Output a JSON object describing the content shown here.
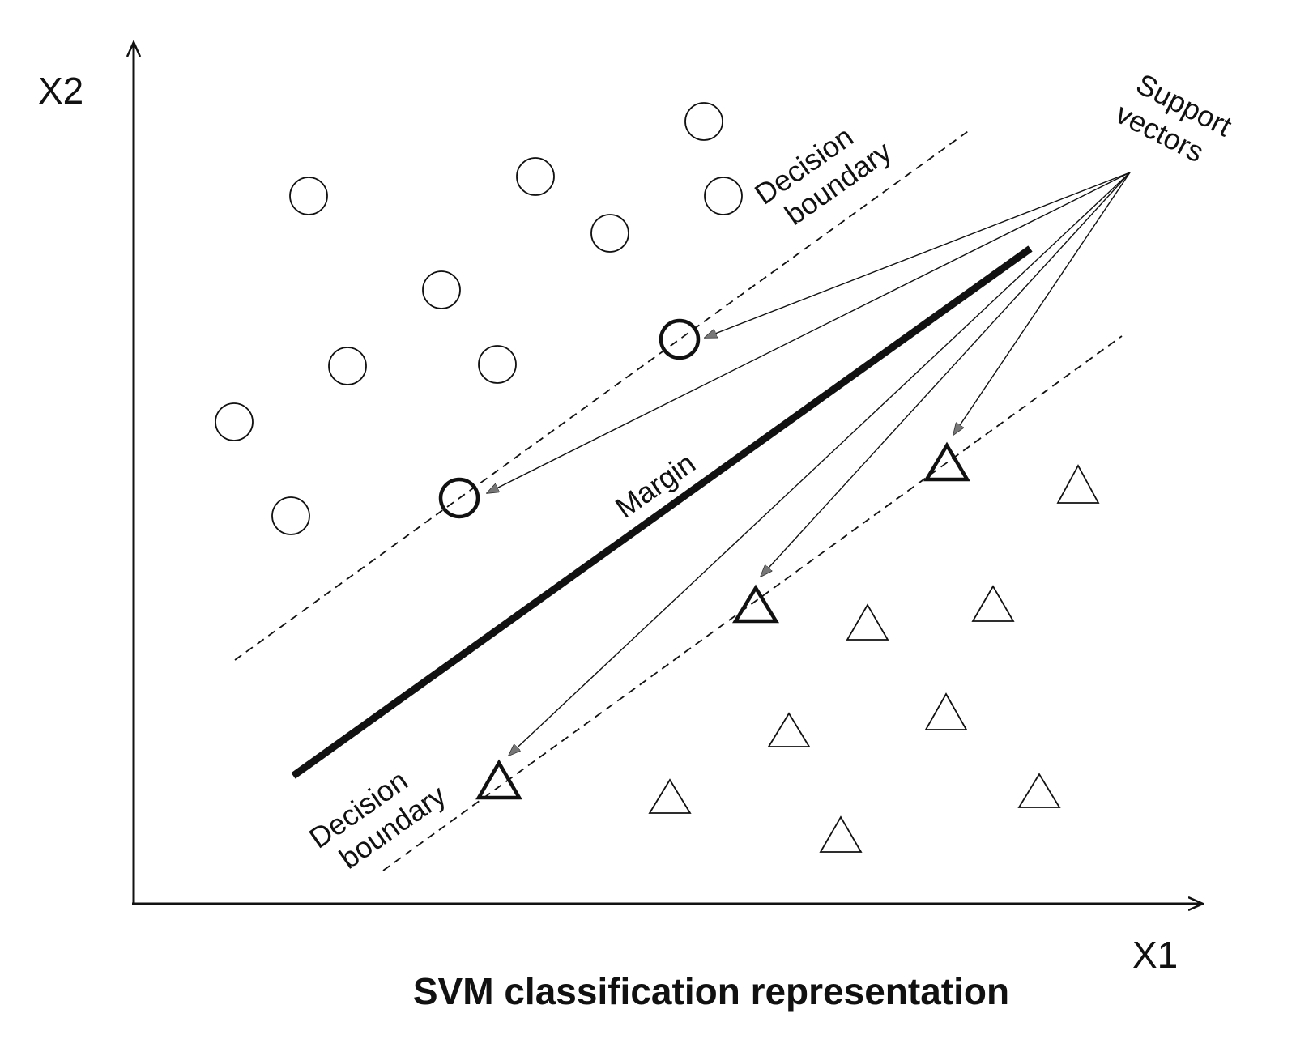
{
  "diagram": {
    "title": "SVM classification representation",
    "axis_x_label": "X1",
    "axis_y_label": "X2",
    "label_decision_boundary_top": [
      "Decision",
      "boundary"
    ],
    "label_decision_boundary_bottom": [
      "Decision",
      "boundary"
    ],
    "label_margin": "Margin",
    "label_support_vectors": [
      "Support",
      "vectors"
    ],
    "class_a_marker": "circle",
    "class_b_marker": "triangle",
    "colors": {
      "ink": "#111111",
      "background": "#ffffff",
      "arrowhead": "#777777"
    }
  }
}
